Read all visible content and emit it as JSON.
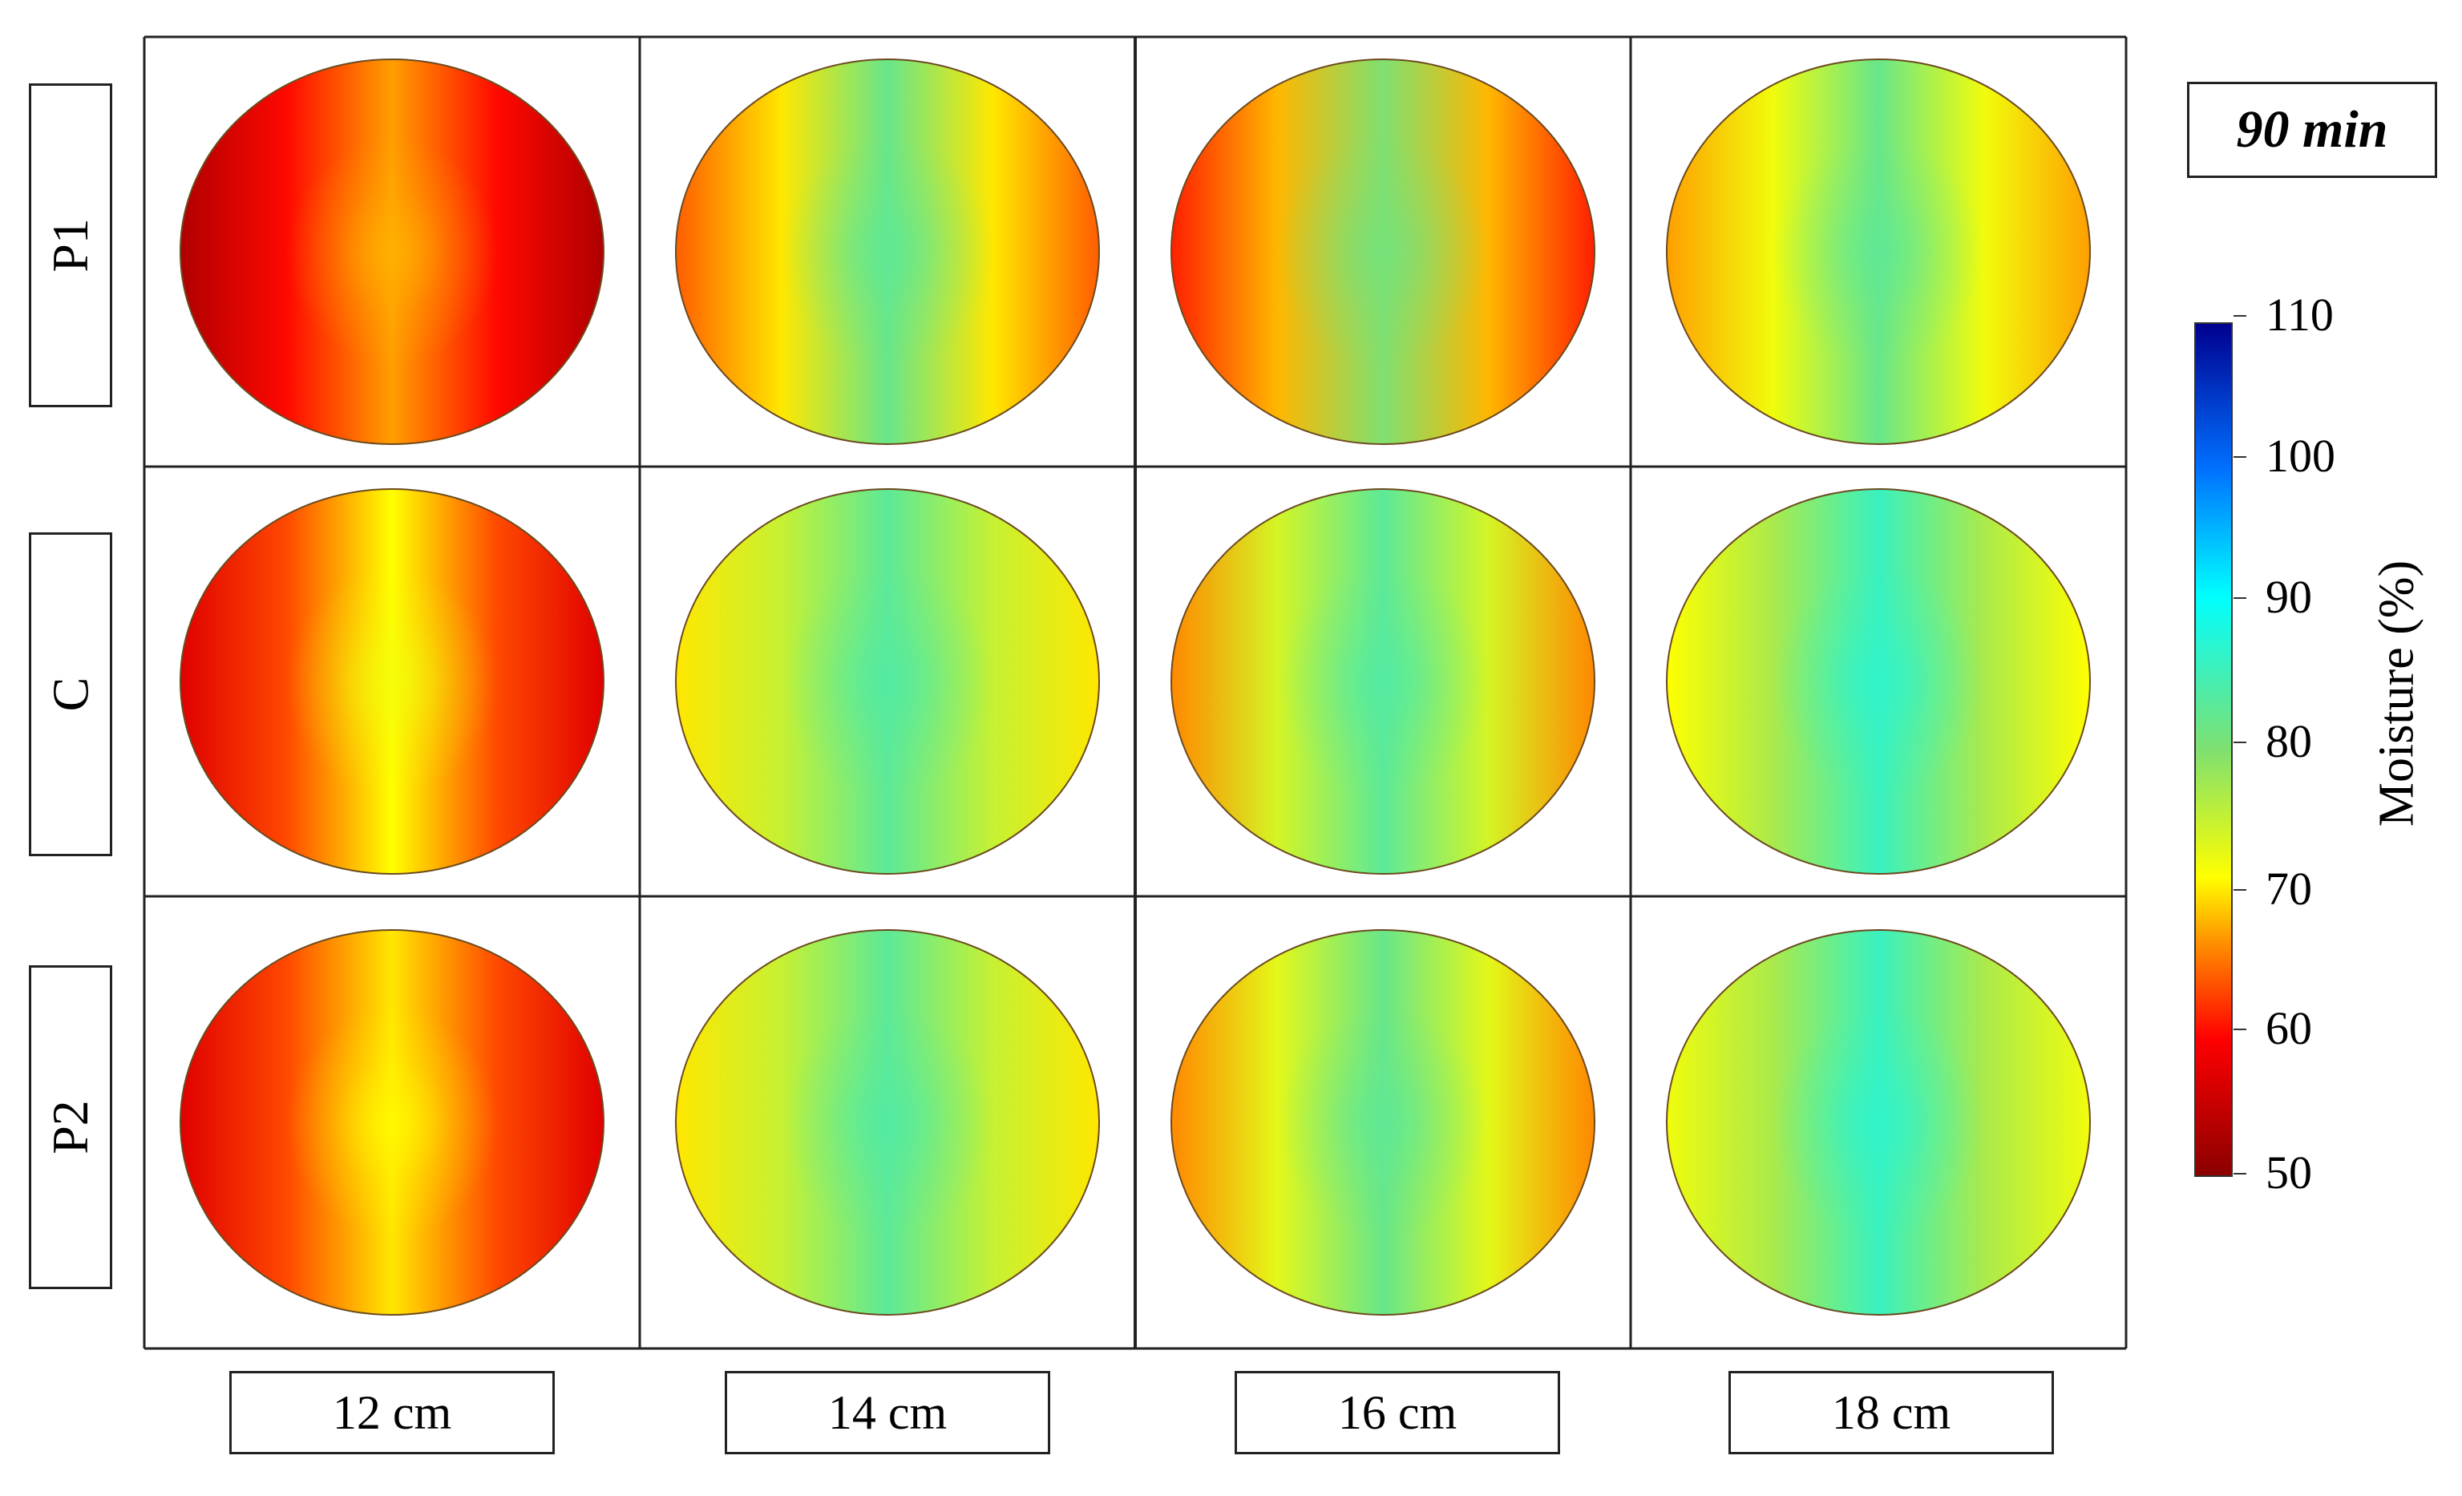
{
  "chart_data": {
    "type": "heatmap",
    "time_label": "90 min",
    "rows": [
      "P1",
      "C",
      "P2"
    ],
    "columns": [
      "12 cm",
      "14 cm",
      "16 cm",
      "18 cm"
    ],
    "colorbar": {
      "label": "Moisture (%)",
      "range": [
        50,
        110
      ],
      "ticks": [
        50,
        60,
        70,
        80,
        90,
        100,
        110
      ],
      "colormap": "jet"
    },
    "maps": [
      {
        "row": "P1",
        "column": "12 cm",
        "center": 67,
        "mid": 60,
        "edge": 53
      },
      {
        "row": "P1",
        "column": "14 cm",
        "center": 82,
        "mid": 70,
        "edge": 64
      },
      {
        "row": "P1",
        "column": "16 cm",
        "center": 80,
        "mid": 68,
        "edge": 61
      },
      {
        "row": "P1",
        "column": "18 cm",
        "center": 82,
        "mid": 72,
        "edge": 67
      },
      {
        "row": "C",
        "column": "12 cm",
        "center": 71,
        "mid": 63,
        "edge": 57
      },
      {
        "row": "C",
        "column": "14 cm",
        "center": 83,
        "mid": 75,
        "edge": 70
      },
      {
        "row": "C",
        "column": "16 cm",
        "center": 83,
        "mid": 74,
        "edge": 66
      },
      {
        "row": "C",
        "column": "18 cm",
        "center": 86,
        "mid": 77,
        "edge": 71
      },
      {
        "row": "P2",
        "column": "12 cm",
        "center": 70,
        "mid": 63,
        "edge": 57
      },
      {
        "row": "P2",
        "column": "14 cm",
        "center": 83,
        "mid": 75,
        "edge": 70
      },
      {
        "row": "P2",
        "column": "16 cm",
        "center": 82,
        "mid": 73,
        "edge": 66
      },
      {
        "row": "P2",
        "column": "18 cm",
        "center": 86,
        "mid": 77,
        "edge": 72
      }
    ]
  }
}
